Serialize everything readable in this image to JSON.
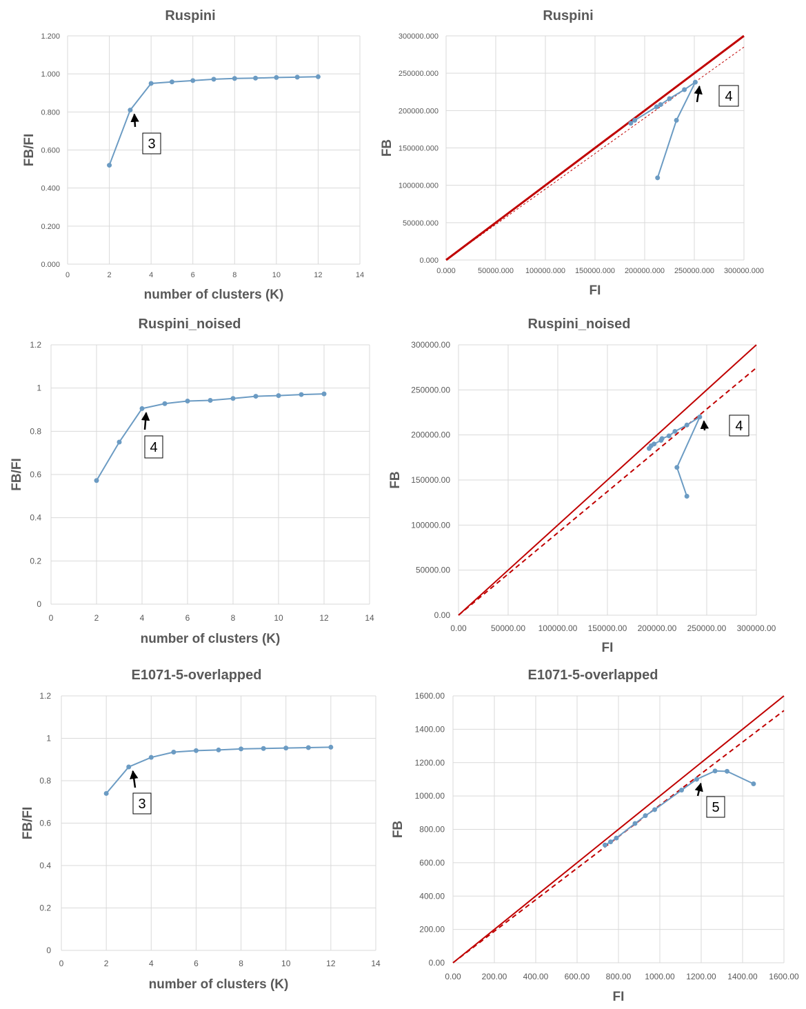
{
  "colors": {
    "series": "#6b9bc3",
    "diagonal": "#c00000",
    "trend": "#c00000",
    "grid": "#d9d9d9",
    "text": "#595959"
  },
  "chart_data": [
    {
      "type": "line",
      "title": "Ruspini",
      "xlabel": "number of clusters (K)",
      "ylabel": "FB/FI",
      "xlim": [
        0,
        14
      ],
      "ylim": [
        0,
        1.2
      ],
      "xticks": [
        "0",
        "2",
        "4",
        "6",
        "8",
        "10",
        "12",
        "14"
      ],
      "yticks": [
        "0.000",
        "0.200",
        "0.400",
        "0.600",
        "0.800",
        "1.000",
        "1.200"
      ],
      "grid": true,
      "x": [
        2,
        3,
        4,
        5,
        6,
        7,
        8,
        9,
        10,
        11,
        12
      ],
      "y": [
        0.52,
        0.81,
        0.95,
        0.958,
        0.965,
        0.972,
        0.976,
        0.978,
        0.981,
        0.983,
        0.985
      ],
      "annotation": {
        "text": "3",
        "x": 3,
        "y": 0.81
      }
    },
    {
      "type": "scatter",
      "title": "Ruspini",
      "xlabel": "FI",
      "ylabel": "FB",
      "xlim": [
        0,
        300000
      ],
      "ylim": [
        0,
        300000
      ],
      "xticks": [
        "0.000",
        "50000.000",
        "100000.000",
        "150000.000",
        "200000.000",
        "250000.000",
        "300000.000"
      ],
      "yticks": [
        "0.000",
        "50000.000",
        "100000.000",
        "150000.000",
        "200000.000",
        "250000.000",
        "300000.000"
      ],
      "grid": true,
      "x": [
        213000,
        232000,
        251000,
        240000,
        225000,
        216000,
        212000,
        190000,
        186000
      ],
      "y": [
        110000,
        187000,
        238000,
        228000,
        216000,
        208000,
        205000,
        187000,
        183000
      ],
      "reference_line": "FB = FI",
      "trend_slope": 0.95,
      "annotation": {
        "text": "4",
        "x": 251000,
        "y": 238000
      }
    },
    {
      "type": "line",
      "title": "Ruspini_noised",
      "xlabel": "number of clusters (K)",
      "ylabel": "FB/FI",
      "xlim": [
        0,
        14
      ],
      "ylim": [
        0,
        1.2
      ],
      "xticks": [
        "0",
        "2",
        "4",
        "6",
        "8",
        "10",
        "12",
        "14"
      ],
      "yticks": [
        "0",
        "0.2",
        "0.4",
        "0.6",
        "0.8",
        "1",
        "1.2"
      ],
      "grid": true,
      "x": [
        2,
        3,
        4,
        5,
        6,
        7,
        8,
        9,
        10,
        11,
        12
      ],
      "y": [
        0.572,
        0.75,
        0.905,
        0.928,
        0.94,
        0.943,
        0.952,
        0.962,
        0.965,
        0.97,
        0.973
      ],
      "annotation": {
        "text": "4",
        "x": 4,
        "y": 0.905
      }
    },
    {
      "type": "scatter",
      "title": "Ruspini_noised",
      "xlabel": "FI",
      "ylabel": "FB",
      "xlim": [
        0,
        300000
      ],
      "ylim": [
        0,
        300000
      ],
      "xticks": [
        "0.00",
        "50000.00",
        "100000.00",
        "150000.00",
        "200000.00",
        "250000.00",
        "300000.00"
      ],
      "yticks": [
        "0.00",
        "50000.00",
        "100000.00",
        "150000.00",
        "200000.00",
        "250000.00",
        "300000.00"
      ],
      "grid": true,
      "x": [
        230000,
        220000,
        243000,
        230000,
        218000,
        212000,
        205000,
        204000,
        197000,
        194000,
        192000
      ],
      "y": [
        132000,
        164000,
        220000,
        211000,
        204000,
        199000,
        196000,
        194000,
        190000,
        188000,
        185000
      ],
      "reference_line": "FB = FI",
      "trend_slope": 0.915,
      "annotation": {
        "text": "4",
        "x": 243000,
        "y": 220000
      }
    },
    {
      "type": "line",
      "title": "E1071-5-overlapped",
      "xlabel": "number of clusters (K)",
      "ylabel": "FB/FI",
      "xlim": [
        0,
        14
      ],
      "ylim": [
        0,
        1.2
      ],
      "xticks": [
        "0",
        "2",
        "4",
        "6",
        "8",
        "10",
        "12",
        "14"
      ],
      "yticks": [
        "0",
        "0.2",
        "0.4",
        "0.6",
        "0.8",
        "1",
        "1.2"
      ],
      "grid": true,
      "x": [
        2,
        3,
        4,
        5,
        6,
        7,
        8,
        9,
        10,
        11,
        12
      ],
      "y": [
        0.74,
        0.865,
        0.91,
        0.935,
        0.942,
        0.945,
        0.95,
        0.952,
        0.954,
        0.956,
        0.958
      ],
      "annotation": {
        "text": "3",
        "x": 3,
        "y": 0.865
      }
    },
    {
      "type": "scatter",
      "title": "E1071-5-overlapped",
      "xlabel": "FI",
      "ylabel": "FB",
      "xlim": [
        0,
        1600
      ],
      "ylim": [
        0,
        1600
      ],
      "xticks": [
        "0.00",
        "200.00",
        "400.00",
        "600.00",
        "800.00",
        "1000.00",
        "1200.00",
        "1400.00",
        "1600.00"
      ],
      "yticks": [
        "0.00",
        "200.00",
        "400.00",
        "600.00",
        "800.00",
        "1000.00",
        "1200.00",
        "1400.00",
        "1600.00"
      ],
      "grid": true,
      "x": [
        1453,
        1325,
        1267,
        1178,
        1105,
        975,
        930,
        880,
        790,
        762,
        735
      ],
      "y": [
        1073,
        1148,
        1150,
        1100,
        1035,
        918,
        882,
        835,
        748,
        725,
        706
      ],
      "reference_line": "FB = FI",
      "trend_slope": 0.945,
      "annotation": {
        "text": "5",
        "x": 1178,
        "y": 1100
      }
    }
  ]
}
